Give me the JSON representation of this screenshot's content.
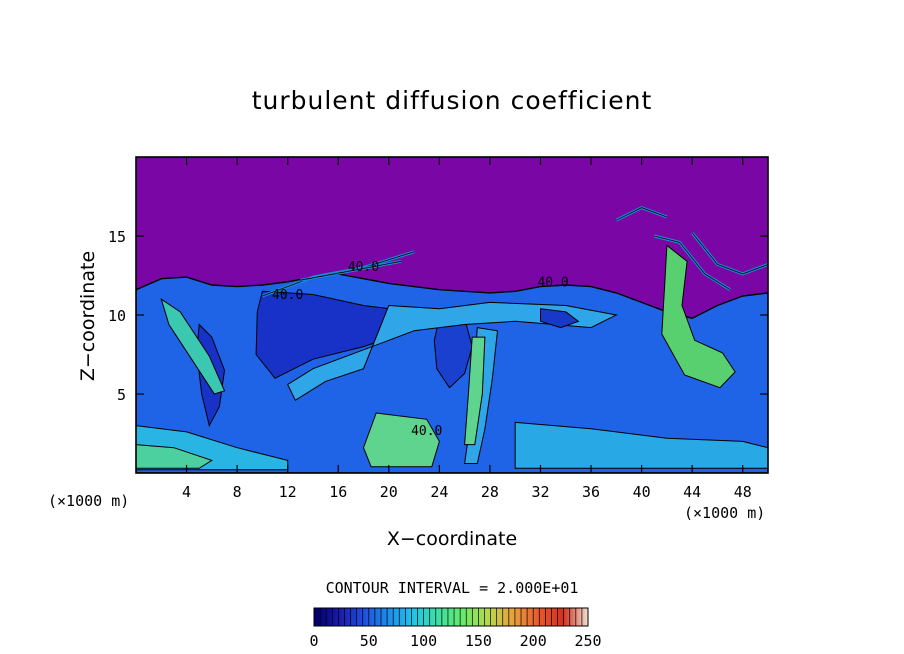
{
  "chart_data": {
    "type": "heatmap",
    "title": "turbulent diffusion coefficient",
    "xlabel": "X−coordinate",
    "ylabel": "Z−coordinate",
    "x_unit": "(×1000 m)",
    "xlim": [
      0,
      50
    ],
    "ylim": [
      0,
      20
    ],
    "x_ticks": [
      "4",
      "8",
      "12",
      "16",
      "20",
      "24",
      "28",
      "32",
      "36",
      "40",
      "44",
      "48"
    ],
    "y_ticks": [
      "5",
      "10",
      "15"
    ],
    "contour_interval_text": "CONTOUR INTERVAL = 2.000E+01",
    "contour_labels": [
      {
        "text": "40.0",
        "x": 33,
        "z": 11.8
      },
      {
        "text": "40.0",
        "x": 18,
        "z": 12.8
      },
      {
        "text": "40.0",
        "x": 12,
        "z": 11.0
      },
      {
        "text": "40.0",
        "x": 23,
        "z": 2.4
      }
    ],
    "colorbar": {
      "min": 0,
      "max": 250,
      "ticks": [
        "0",
        "50",
        "100",
        "150",
        "200",
        "250"
      ],
      "colormap": [
        "#000066",
        "#1a1aa8",
        "#1f4fe0",
        "#1f8de8",
        "#22c4e6",
        "#3de0a0",
        "#6be86a",
        "#b8d84a",
        "#e8a040",
        "#e85a30",
        "#d43020",
        "#f0e0d0"
      ]
    },
    "field_regions": {
      "upper_background": {
        "color": "#7a06a6",
        "value": 0
      },
      "turbulent_layer": {
        "color": "#1f63e6",
        "value": 40,
        "top_z": 11.5
      },
      "high_values_near_surface": {
        "color": "#5ed48e",
        "value": 100
      }
    }
  }
}
